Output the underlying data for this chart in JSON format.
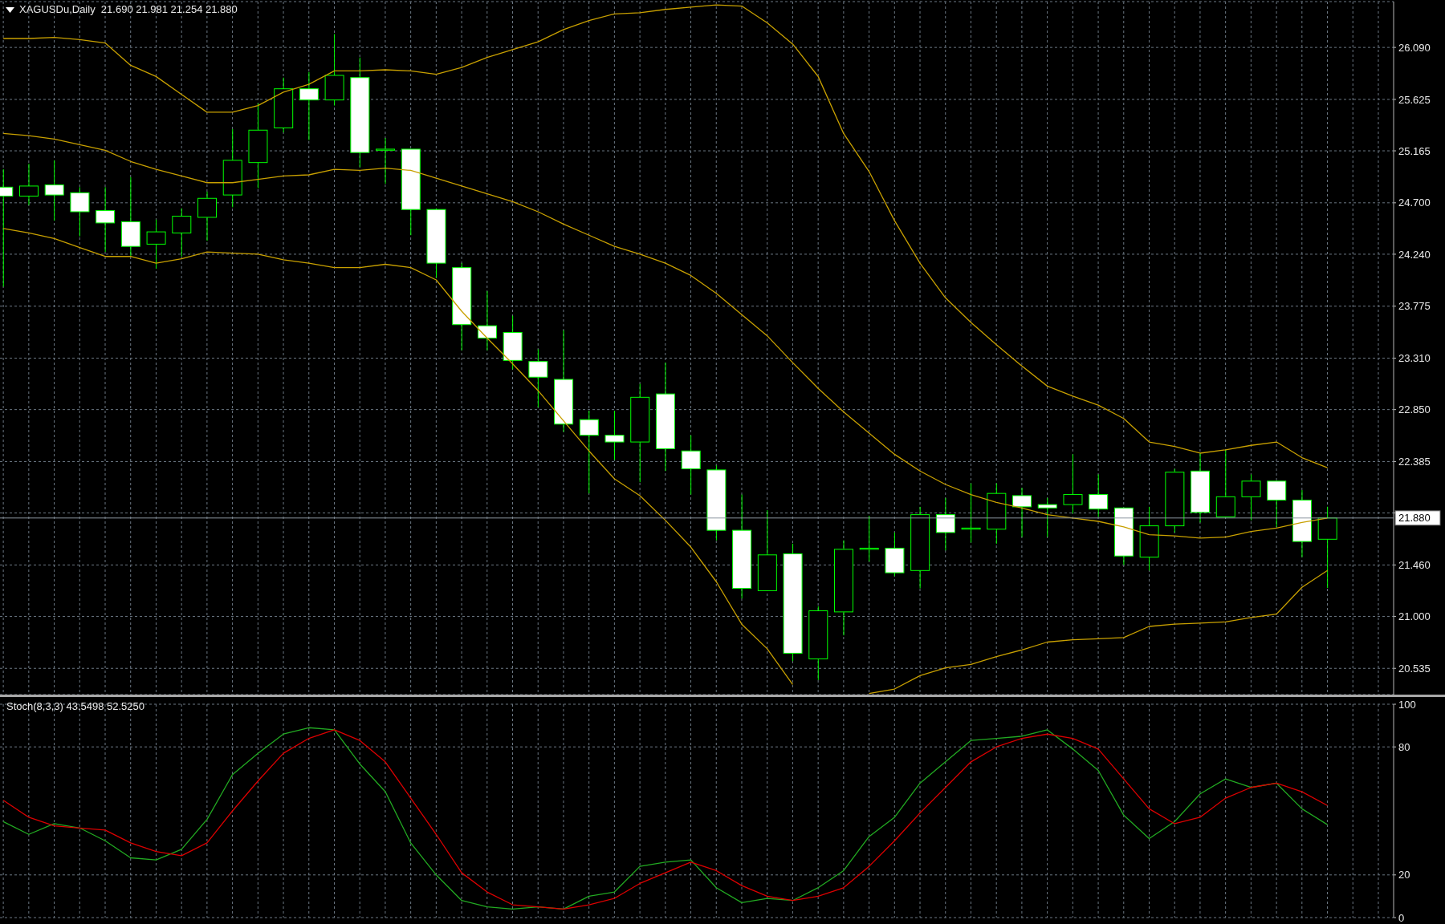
{
  "chart_data": [
    {
      "type": "candlestick",
      "title": "XAGUSDu,Daily  21.690 21.981 21.254 21.880",
      "categories": [
        null,
        null,
        null,
        null,
        null,
        null,
        null,
        null,
        null,
        null,
        null,
        null,
        null,
        null,
        null,
        null,
        null,
        null,
        null,
        null,
        null,
        null,
        null,
        null,
        null,
        null,
        null,
        null,
        null,
        null,
        null,
        null,
        null,
        null,
        null,
        null,
        null,
        null,
        null,
        null,
        null,
        null,
        null,
        null,
        null,
        null,
        null,
        null,
        null,
        null,
        null,
        null,
        null
      ],
      "color": "#00ff00",
      "colors": [
        "#ffffff",
        "#000000",
        "#ffffff",
        "#ffffff",
        "#ffffff",
        "#ffffff",
        "#000000",
        "#000000",
        "#000000",
        "#000000",
        "#000000",
        "#000000",
        "#ffffff",
        "#000000",
        "#ffffff",
        "#000000",
        "#ffffff",
        "#ffffff",
        "#ffffff",
        "#ffffff",
        "#ffffff",
        "#ffffff",
        "#ffffff",
        "#ffffff",
        "#ffffff",
        "#000000",
        "#ffffff",
        "#ffffff",
        "#ffffff",
        "#ffffff",
        "#000000",
        "#ffffff",
        "#000000",
        "#000000",
        "#000000",
        "#ffffff",
        "#000000",
        "#ffffff",
        "#000000",
        "#000000",
        "#ffffff",
        "#ffffff",
        "#000000",
        "#ffffff",
        "#ffffff",
        "#000000",
        "#000000",
        "#ffffff",
        "#000000",
        "#000000",
        "#ffffff",
        "#ffffff",
        "#000000"
      ],
      "ohlc": [
        [
          24.84,
          25.0,
          23.95,
          24.76
        ],
        [
          24.76,
          25.05,
          24.68,
          24.85
        ],
        [
          24.86,
          25.08,
          24.54,
          24.77
        ],
        [
          24.79,
          24.84,
          24.4,
          24.62
        ],
        [
          24.63,
          24.84,
          24.26,
          24.52
        ],
        [
          24.53,
          24.93,
          24.22,
          24.31
        ],
        [
          24.33,
          24.55,
          24.11,
          24.44
        ],
        [
          24.43,
          24.65,
          24.22,
          24.58
        ],
        [
          24.57,
          24.8,
          24.36,
          24.74
        ],
        [
          24.77,
          25.36,
          24.66,
          25.08
        ],
        [
          25.06,
          25.59,
          24.83,
          25.35
        ],
        [
          25.37,
          25.82,
          25.33,
          25.72
        ],
        [
          25.72,
          25.87,
          25.26,
          25.62
        ],
        [
          25.62,
          26.21,
          25.57,
          25.84
        ],
        [
          25.82,
          26.0,
          25.02,
          25.15
        ],
        [
          25.17,
          25.28,
          24.87,
          25.18
        ],
        [
          25.18,
          25.18,
          24.41,
          24.64
        ],
        [
          24.64,
          24.65,
          24.03,
          24.16
        ],
        [
          24.12,
          24.16,
          23.38,
          23.61
        ],
        [
          23.6,
          23.91,
          23.38,
          23.49
        ],
        [
          23.54,
          23.69,
          23.21,
          23.29
        ],
        [
          23.28,
          23.39,
          22.87,
          23.14
        ],
        [
          23.12,
          23.56,
          22.65,
          22.72
        ],
        [
          22.76,
          22.84,
          22.1,
          22.62
        ],
        [
          22.62,
          22.84,
          22.4,
          22.56
        ],
        [
          22.56,
          23.08,
          22.2,
          22.96
        ],
        [
          22.99,
          23.27,
          22.3,
          22.5
        ],
        [
          22.48,
          22.62,
          22.09,
          22.32
        ],
        [
          22.31,
          22.35,
          21.68,
          21.77
        ],
        [
          21.77,
          22.09,
          21.16,
          21.25
        ],
        [
          21.23,
          21.95,
          21.23,
          21.55
        ],
        [
          21.56,
          21.65,
          20.6,
          20.67
        ],
        [
          20.62,
          21.09,
          20.43,
          21.05
        ],
        [
          21.04,
          21.68,
          20.83,
          21.6
        ],
        [
          21.6,
          21.9,
          21.49,
          21.61
        ],
        [
          21.61,
          21.75,
          21.36,
          21.39
        ],
        [
          21.41,
          21.98,
          21.25,
          21.91
        ],
        [
          21.91,
          22.06,
          21.59,
          21.75
        ],
        [
          21.78,
          22.19,
          21.66,
          21.79
        ],
        [
          21.78,
          22.19,
          21.65,
          22.1
        ],
        [
          22.08,
          22.15,
          21.71,
          21.98
        ],
        [
          22.0,
          22.06,
          21.71,
          21.97
        ],
        [
          22.0,
          22.45,
          21.92,
          22.09
        ],
        [
          22.09,
          22.27,
          21.89,
          21.96
        ],
        [
          21.97,
          21.97,
          21.46,
          21.54
        ],
        [
          21.53,
          21.98,
          21.41,
          21.81
        ],
        [
          21.81,
          22.32,
          21.75,
          22.29
        ],
        [
          22.3,
          22.46,
          21.84,
          21.93
        ],
        [
          21.89,
          22.49,
          21.89,
          22.07
        ],
        [
          22.07,
          22.27,
          21.86,
          22.21
        ],
        [
          22.21,
          22.21,
          21.8,
          22.04
        ],
        [
          22.04,
          22.13,
          21.53,
          21.67
        ],
        [
          21.69,
          21.981,
          21.254,
          21.88
        ]
      ],
      "series": [
        {
          "type": "line",
          "color": "#c8a000",
          "values": [
            26.17,
            26.17,
            26.18,
            26.16,
            26.13,
            25.93,
            25.83,
            25.67,
            25.51,
            25.51,
            25.57,
            25.69,
            25.76,
            25.88,
            25.88,
            25.89,
            25.88,
            25.85,
            25.91,
            26.0,
            26.07,
            26.14,
            26.25,
            26.33,
            26.39,
            26.4,
            26.43,
            26.45,
            26.47,
            26.46,
            26.31,
            26.12,
            25.83,
            25.32,
            24.98,
            24.54,
            24.16,
            23.85,
            23.63,
            23.43,
            23.24,
            23.06,
            22.97,
            22.89,
            22.77,
            22.56,
            22.52,
            22.46,
            22.49,
            22.53,
            22.56,
            22.42,
            22.33
          ]
        },
        {
          "type": "line",
          "color": "#c8a000",
          "values": [
            25.32,
            25.3,
            25.27,
            25.22,
            25.17,
            25.07,
            25.0,
            24.94,
            24.88,
            24.88,
            24.91,
            24.94,
            24.95,
            25.0,
            24.99,
            25.01,
            24.99,
            24.92,
            24.85,
            24.78,
            24.71,
            24.62,
            24.51,
            24.41,
            24.31,
            24.24,
            24.16,
            24.05,
            23.89,
            23.7,
            23.51,
            23.27,
            23.04,
            22.83,
            22.64,
            22.45,
            22.3,
            22.18,
            22.09,
            22.02,
            21.97,
            21.91,
            21.88,
            21.85,
            21.8,
            21.73,
            21.72,
            21.7,
            21.71,
            21.76,
            21.79,
            21.84,
            21.88
          ]
        },
        {
          "type": "line",
          "color": "#c8a000",
          "values": [
            24.47,
            24.43,
            24.38,
            24.3,
            24.22,
            24.22,
            24.16,
            24.2,
            24.26,
            24.25,
            24.24,
            24.19,
            24.16,
            24.12,
            24.12,
            24.15,
            24.12,
            24.01,
            23.73,
            23.49,
            23.26,
            23.02,
            22.75,
            22.48,
            22.23,
            22.08,
            21.86,
            21.62,
            21.31,
            20.93,
            20.71,
            20.39,
            null,
            null,
            20.31,
            20.35,
            20.47,
            20.54,
            20.57,
            20.64,
            20.7,
            20.77,
            20.79,
            20.8,
            20.81,
            20.91,
            20.93,
            20.94,
            20.95,
            20.99,
            21.02,
            21.26,
            21.41
          ]
        }
      ],
      "ylim": [
        20.3,
        26.5
      ],
      "yticks": [
        20.535,
        {
          "value": 21,
          "label": "21.000"
        },
        {
          "value": 21.46,
          "label": "21.460"
        },
        {
          "value": 21.925,
          "label": null
        },
        22.385,
        {
          "value": 22.85,
          "label": "22.850"
        },
        {
          "value": 23.31,
          "label": "23.310"
        },
        23.775,
        {
          "value": 24.24,
          "label": "24.240"
        },
        {
          "value": 24.7,
          "label": "24.700"
        },
        25.165,
        25.625,
        {
          "value": 26.09,
          "label": "26.090"
        }
      ],
      "grid": true,
      "ref_lines": [
        {
          "axis": "y",
          "value": 21.88,
          "label": "21.880",
          "color": "#8c96a0"
        }
      ]
    },
    {
      "type": "line",
      "title": "Stoch(8,3,3) 43.5498 52.5250",
      "categories": [
        null,
        null,
        null,
        null,
        null,
        null,
        null,
        null,
        null,
        null,
        null,
        null,
        null,
        null,
        null,
        null,
        null,
        null,
        null,
        null,
        null,
        null,
        null,
        null,
        null,
        null,
        null,
        null,
        null,
        null,
        null,
        null,
        null,
        null,
        null,
        null,
        null,
        null,
        null,
        null,
        null,
        null,
        null,
        null,
        null,
        null,
        null,
        null,
        null,
        null,
        null,
        null,
        null
      ],
      "series": [
        {
          "color": "#22aa22",
          "values": [
            45,
            39,
            44,
            42,
            36,
            28,
            27,
            32,
            46,
            67,
            77,
            86,
            89,
            88,
            72,
            59,
            35,
            20,
            8,
            5,
            4,
            5,
            4,
            10,
            12,
            24,
            26,
            27,
            14,
            7,
            9,
            8,
            14,
            22,
            38,
            47,
            63,
            73,
            83,
            84,
            85,
            88,
            79,
            69,
            48,
            37,
            45,
            58,
            65,
            61,
            63,
            51,
            43.5498
          ]
        },
        {
          "color": "#dd0000",
          "values": [
            55,
            47,
            43,
            42,
            41,
            35,
            31,
            29,
            35,
            50,
            64,
            77,
            84,
            88,
            83,
            73,
            56,
            39,
            21,
            12,
            6,
            5,
            4,
            6,
            9,
            16,
            21,
            26,
            22,
            15,
            10,
            8,
            10,
            14,
            24,
            36,
            49,
            61,
            73,
            80,
            84,
            86,
            84,
            79,
            65,
            51,
            44,
            47,
            56,
            61,
            63,
            59,
            52.525
          ]
        }
      ],
      "ylim": [
        0,
        100
      ],
      "yticks": [
        0,
        20,
        80,
        100
      ],
      "grid": true
    }
  ]
}
